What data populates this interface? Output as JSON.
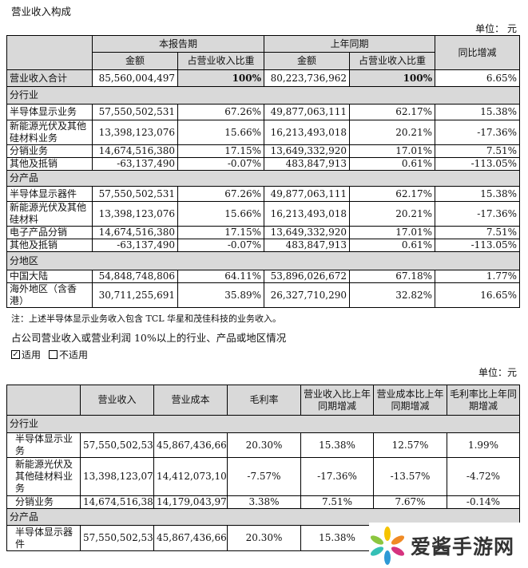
{
  "section_title": "营业收入构成",
  "unit_label": "单位： 元",
  "table1": {
    "header": {
      "current_period": "本报告期",
      "last_year": "上年同期",
      "yoy": "同比增减",
      "amount": "金额",
      "share": "占营业收入比重"
    },
    "total": {
      "label": "营业收入合计",
      "cur_amount": "85,560,004,497",
      "cur_share": "100%",
      "prev_amount": "80,223,736,962",
      "prev_share": "100%",
      "yoy": "6.65%"
    },
    "sections": [
      {
        "title": "分行业",
        "rows": [
          {
            "label": "半导体显示业务",
            "cur_amount": "57,550,502,531",
            "cur_share": "67.26%",
            "prev_amount": "49,877,063,111",
            "prev_share": "62.17%",
            "yoy": "15.38%"
          },
          {
            "label": "新能源光伏及其他硅材料业务",
            "cur_amount": "13,398,123,076",
            "cur_share": "15.66%",
            "prev_amount": "16,213,493,018",
            "prev_share": "20.21%",
            "yoy": "-17.36%"
          },
          {
            "label": "分销业务",
            "cur_amount": "14,674,516,380",
            "cur_share": "17.15%",
            "prev_amount": "13,649,332,920",
            "prev_share": "17.01%",
            "yoy": "7.51%"
          },
          {
            "label": "其他及抵销",
            "cur_amount": "-63,137,490",
            "cur_share": "-0.07%",
            "prev_amount": "483,847,913",
            "prev_share": "0.61%",
            "yoy": "-113.05%"
          }
        ]
      },
      {
        "title": "分产品",
        "rows": [
          {
            "label": "半导体显示器件",
            "cur_amount": "57,550,502,531",
            "cur_share": "67.26%",
            "prev_amount": "49,877,063,111",
            "prev_share": "62.17%",
            "yoy": "15.38%"
          },
          {
            "label": "新能源光伏及其他硅材料",
            "cur_amount": "13,398,123,076",
            "cur_share": "15.66%",
            "prev_amount": "16,213,493,018",
            "prev_share": "20.21%",
            "yoy": "-17.36%"
          },
          {
            "label": "电子产品分销",
            "cur_amount": "14,674,516,380",
            "cur_share": "17.15%",
            "prev_amount": "13,649,332,920",
            "prev_share": "17.01%",
            "yoy": "7.51%"
          },
          {
            "label": "其他及抵销",
            "cur_amount": "-63,137,490",
            "cur_share": "-0.07%",
            "prev_amount": "483,847,913",
            "prev_share": "0.61%",
            "yoy": "-113.05%"
          }
        ]
      },
      {
        "title": "分地区",
        "rows": [
          {
            "label": "中国大陆",
            "cur_amount": "54,848,748,806",
            "cur_share": "64.11%",
            "prev_amount": "53,896,026,672",
            "prev_share": "67.18%",
            "yoy": "1.77%"
          },
          {
            "label": "海外地区（含香港）",
            "cur_amount": "30,711,255,691",
            "cur_share": "35.89%",
            "prev_amount": "26,327,710,290",
            "prev_share": "32.82%",
            "yoy": "16.65%"
          }
        ]
      }
    ]
  },
  "note": "注：上述半导体显示业务收入包含 TCL 华星和茂佳科技的业务收入。",
  "subheading": "占公司营业收入或营业利润 10%以上的行业、产品或地区情况",
  "applicable": {
    "checked_label": "适用",
    "unchecked_label": "不适用",
    "checked": true
  },
  "unit_label2": "单位：元",
  "table2": {
    "headers": [
      "营业收入",
      "营业成本",
      "毛利率",
      "营业收入比上年同期增减",
      "营业成本比上年同期增减",
      "毛利率比上年同期增减"
    ],
    "sections": [
      {
        "title": "分行业",
        "rows": [
          {
            "label": "半导体显示业务",
            "values": [
              "57,550,502,531",
              "45,867,436,666",
              "20.30%",
              "15.38%",
              "12.57%",
              "1.99%"
            ]
          },
          {
            "label": "新能源光伏及其他硅材料业务",
            "values": [
              "13,398,123,076",
              "14,412,073,108",
              "-7.57%",
              "-17.36%",
              "-13.57%",
              "-4.72%"
            ]
          },
          {
            "label": "分销业务",
            "values": [
              "14,674,516,380",
              "14,179,043,978",
              "3.38%",
              "7.51%",
              "7.67%",
              "-0.14%"
            ]
          }
        ]
      },
      {
        "title": "分产品",
        "rows": [
          {
            "label": "半导体显示器件",
            "values": [
              "57,550,502,531",
              "45,867,436,666",
              "20.30%",
              "15.38%",
              "",
              ""
            ]
          }
        ]
      }
    ]
  },
  "watermark": {
    "text": "爱酱手游网"
  }
}
